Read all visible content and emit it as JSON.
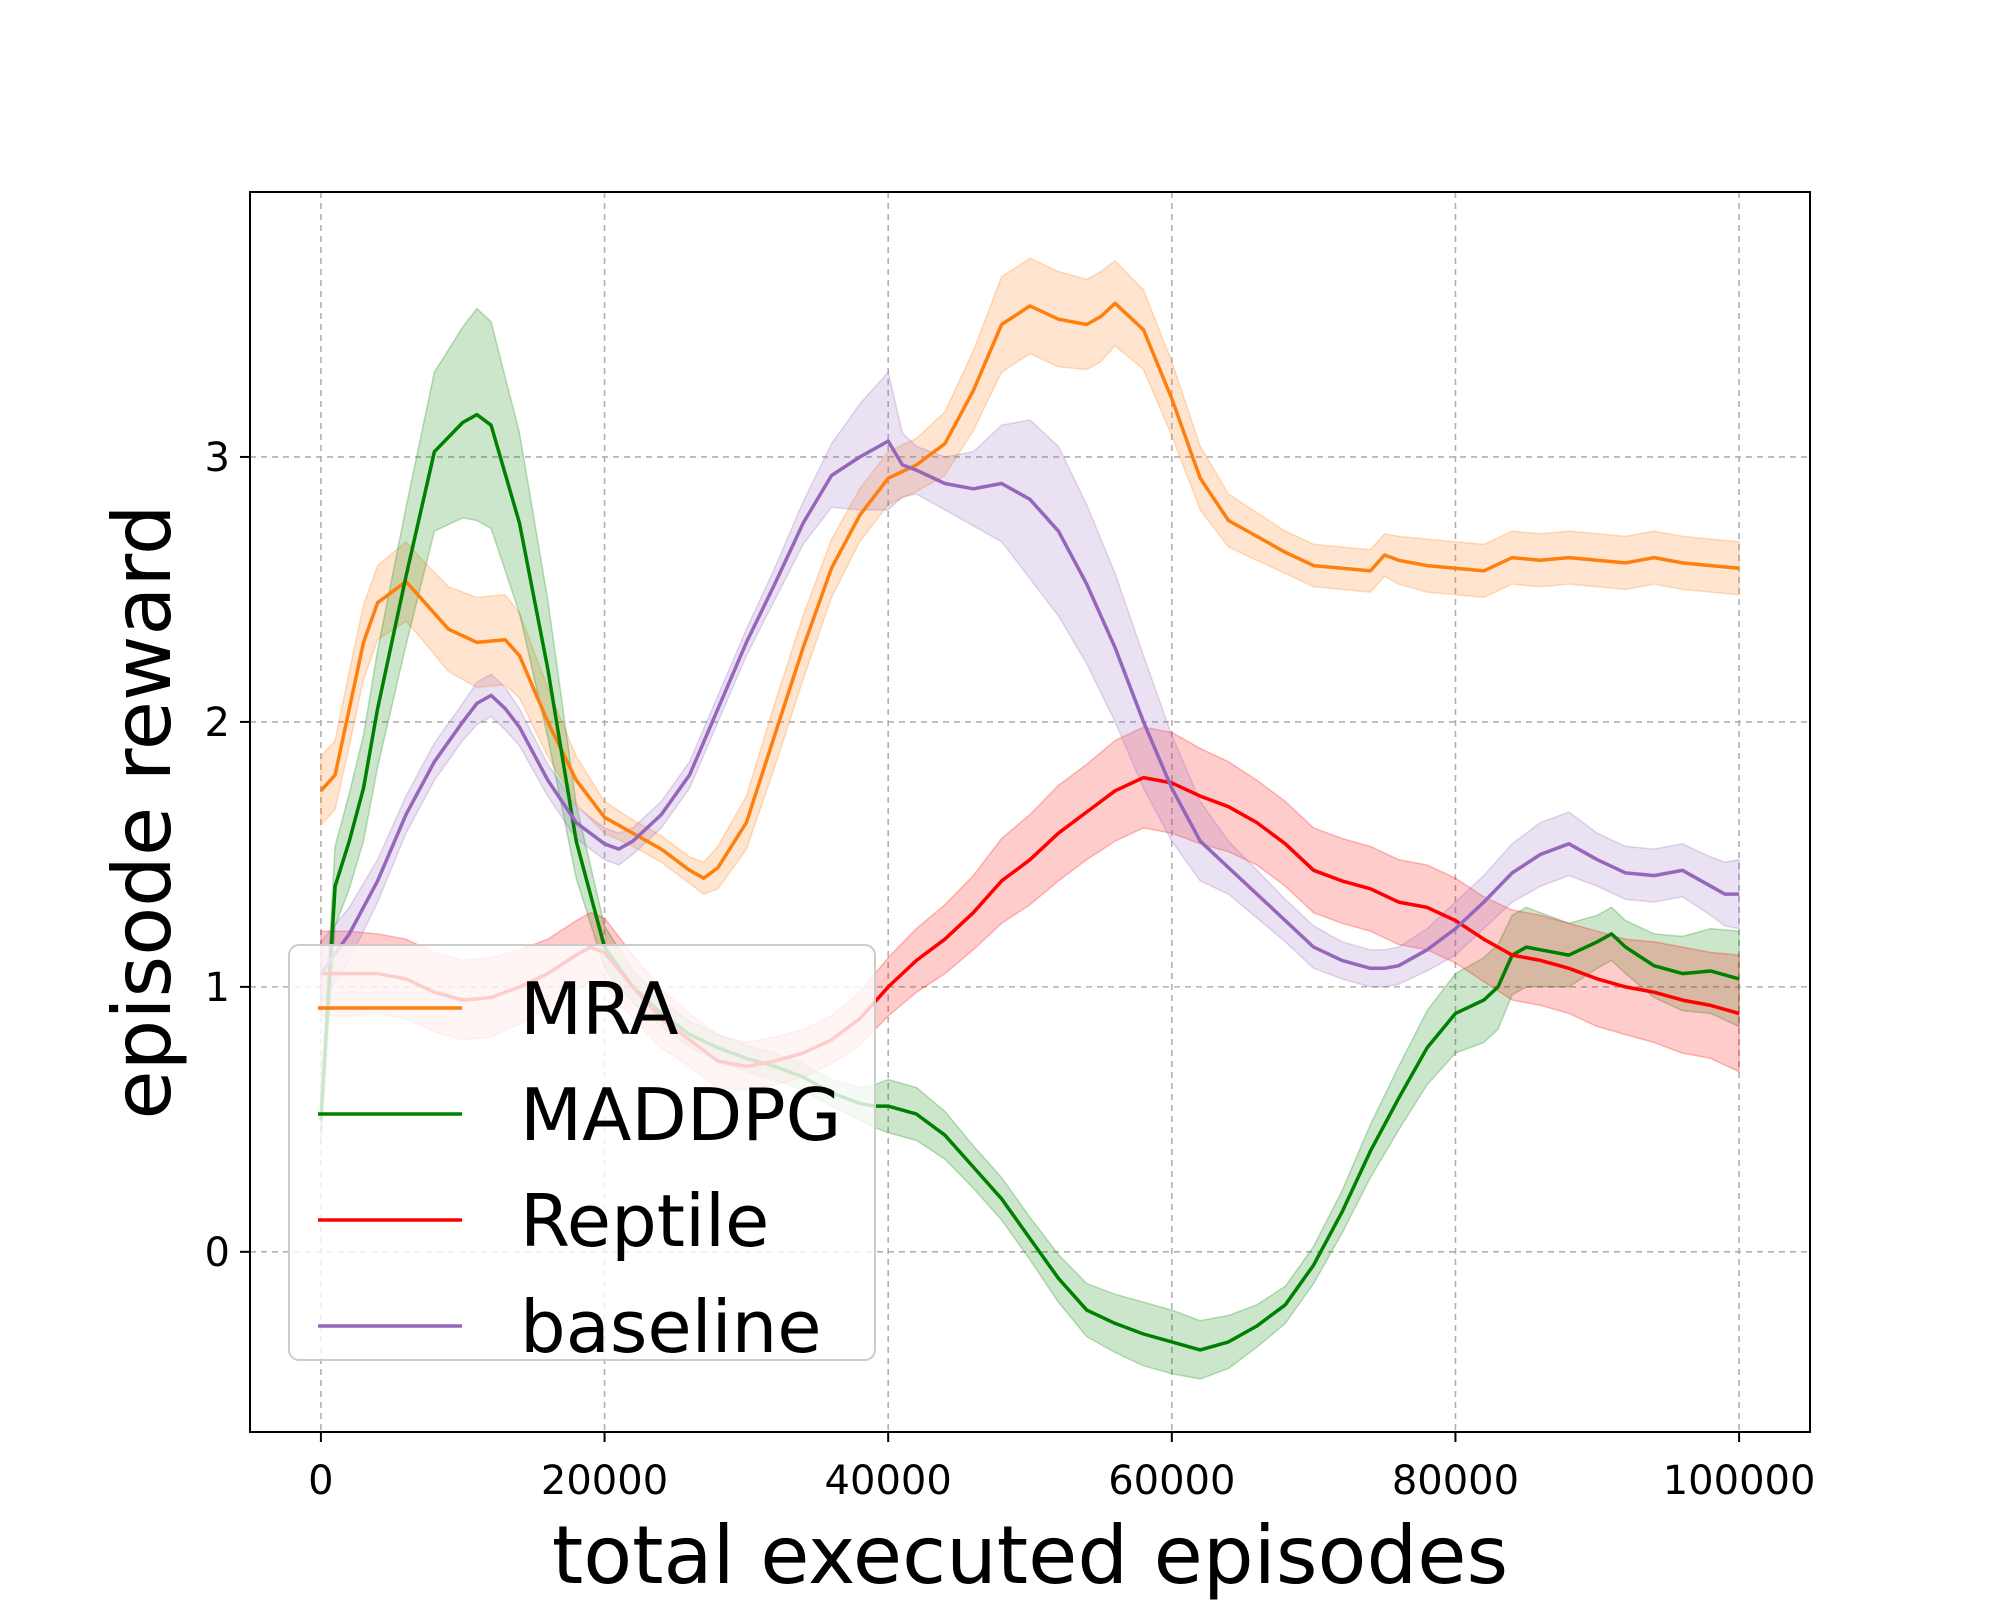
{
  "chart_data": {
    "type": "line",
    "title": "",
    "xlabel": "total executed episodes",
    "ylabel": "episode reward",
    "xlim": [
      -5000,
      105000
    ],
    "ylim": [
      -0.68,
      4.0
    ],
    "xticks": [
      0,
      20000,
      40000,
      60000,
      80000,
      100000
    ],
    "xtick_labels": [
      "0",
      "20000",
      "40000",
      "60000",
      "80000",
      "100000"
    ],
    "yticks": [
      0,
      1,
      2,
      3
    ],
    "ytick_labels": [
      "0",
      "1",
      "2",
      "3"
    ],
    "grid": true,
    "legend_position": "lower-left",
    "series": [
      {
        "name": "MRA",
        "color": "#ff7f0e",
        "x": [
          0,
          1000,
          2000,
          3000,
          4000,
          6000,
          7000,
          9000,
          11000,
          13000,
          14000,
          16000,
          18000,
          20000,
          22000,
          24000,
          26000,
          27000,
          28000,
          30000,
          32000,
          34000,
          36000,
          38000,
          40000,
          42000,
          44000,
          46000,
          48000,
          50000,
          52000,
          54000,
          55000,
          56000,
          58000,
          60000,
          62000,
          64000,
          66000,
          68000,
          70000,
          72000,
          74000,
          75000,
          76000,
          78000,
          80000,
          82000,
          84000,
          86000,
          88000,
          90000,
          92000,
          94000,
          96000,
          98000,
          100000
        ],
        "y": [
          1.74,
          1.8,
          2.05,
          2.3,
          2.45,
          2.53,
          2.47,
          2.35,
          2.3,
          2.31,
          2.25,
          2.0,
          1.78,
          1.64,
          1.58,
          1.52,
          1.44,
          1.41,
          1.45,
          1.62,
          1.95,
          2.28,
          2.58,
          2.78,
          2.92,
          2.97,
          3.05,
          3.25,
          3.5,
          3.57,
          3.52,
          3.5,
          3.53,
          3.58,
          3.48,
          3.22,
          2.92,
          2.76,
          2.7,
          2.64,
          2.59,
          2.58,
          2.57,
          2.63,
          2.61,
          2.59,
          2.58,
          2.57,
          2.62,
          2.61,
          2.62,
          2.61,
          2.6,
          2.62,
          2.6,
          2.59,
          2.58
        ],
        "band": [
          0.13,
          0.13,
          0.14,
          0.14,
          0.14,
          0.15,
          0.15,
          0.16,
          0.17,
          0.17,
          0.16,
          0.13,
          0.09,
          0.06,
          0.05,
          0.05,
          0.05,
          0.06,
          0.08,
          0.1,
          0.12,
          0.12,
          0.11,
          0.1,
          0.1,
          0.1,
          0.12,
          0.15,
          0.18,
          0.18,
          0.18,
          0.17,
          0.17,
          0.16,
          0.15,
          0.14,
          0.12,
          0.1,
          0.09,
          0.08,
          0.08,
          0.08,
          0.08,
          0.08,
          0.09,
          0.1,
          0.1,
          0.1,
          0.1,
          0.1,
          0.1,
          0.1,
          0.1,
          0.1,
          0.1,
          0.1,
          0.1
        ]
      },
      {
        "name": "MADDPG",
        "color": "#008000",
        "x": [
          0,
          1000,
          2000,
          3000,
          4000,
          6000,
          8000,
          10000,
          11000,
          12000,
          14000,
          16000,
          18000,
          20000,
          22000,
          24000,
          26000,
          28000,
          30000,
          32000,
          34000,
          36000,
          38000,
          39000,
          40000,
          42000,
          44000,
          46000,
          48000,
          50000,
          52000,
          54000,
          56000,
          58000,
          60000,
          62000,
          64000,
          66000,
          68000,
          70000,
          72000,
          74000,
          76000,
          78000,
          80000,
          82000,
          83000,
          84000,
          85000,
          86000,
          88000,
          90000,
          91000,
          92000,
          94000,
          96000,
          98000,
          100000
        ],
        "y": [
          0.5,
          1.38,
          1.55,
          1.75,
          2.05,
          2.55,
          3.02,
          3.13,
          3.16,
          3.12,
          2.75,
          2.2,
          1.55,
          1.15,
          1.0,
          0.9,
          0.82,
          0.77,
          0.73,
          0.7,
          0.66,
          0.6,
          0.56,
          0.55,
          0.55,
          0.52,
          0.44,
          0.32,
          0.2,
          0.05,
          -0.1,
          -0.22,
          -0.27,
          -0.31,
          -0.34,
          -0.37,
          -0.34,
          -0.28,
          -0.2,
          -0.05,
          0.15,
          0.38,
          0.58,
          0.77,
          0.9,
          0.95,
          1.0,
          1.12,
          1.15,
          1.14,
          1.12,
          1.17,
          1.2,
          1.15,
          1.08,
          1.05,
          1.06,
          1.03
        ],
        "band": [
          0.1,
          0.15,
          0.18,
          0.2,
          0.22,
          0.26,
          0.3,
          0.36,
          0.4,
          0.39,
          0.34,
          0.26,
          0.14,
          0.08,
          0.06,
          0.05,
          0.05,
          0.05,
          0.05,
          0.05,
          0.05,
          0.05,
          0.06,
          0.08,
          0.1,
          0.1,
          0.09,
          0.08,
          0.08,
          0.08,
          0.09,
          0.1,
          0.11,
          0.12,
          0.12,
          0.11,
          0.1,
          0.08,
          0.07,
          0.07,
          0.08,
          0.1,
          0.12,
          0.14,
          0.15,
          0.16,
          0.16,
          0.15,
          0.15,
          0.14,
          0.12,
          0.1,
          0.1,
          0.1,
          0.12,
          0.14,
          0.16,
          0.18
        ]
      },
      {
        "name": "Reptile",
        "color": "#ff0000",
        "x": [
          0,
          2000,
          4000,
          6000,
          8000,
          10000,
          12000,
          14000,
          16000,
          18000,
          19000,
          20000,
          22000,
          24000,
          26000,
          28000,
          30000,
          32000,
          34000,
          36000,
          38000,
          40000,
          42000,
          44000,
          46000,
          48000,
          50000,
          52000,
          54000,
          56000,
          58000,
          60000,
          62000,
          64000,
          66000,
          68000,
          70000,
          72000,
          74000,
          76000,
          78000,
          80000,
          82000,
          84000,
          86000,
          88000,
          90000,
          92000,
          94000,
          96000,
          98000,
          100000
        ],
        "y": [
          1.05,
          1.05,
          1.05,
          1.03,
          0.98,
          0.95,
          0.96,
          1.0,
          1.05,
          1.12,
          1.15,
          1.13,
          1.0,
          0.88,
          0.8,
          0.72,
          0.7,
          0.72,
          0.75,
          0.8,
          0.88,
          1.0,
          1.1,
          1.18,
          1.28,
          1.4,
          1.48,
          1.58,
          1.66,
          1.74,
          1.79,
          1.77,
          1.72,
          1.68,
          1.62,
          1.54,
          1.44,
          1.4,
          1.37,
          1.32,
          1.3,
          1.25,
          1.18,
          1.12,
          1.1,
          1.07,
          1.03,
          1.0,
          0.98,
          0.95,
          0.93,
          0.9
        ],
        "band": [
          0.16,
          0.16,
          0.15,
          0.15,
          0.15,
          0.15,
          0.15,
          0.14,
          0.13,
          0.13,
          0.13,
          0.13,
          0.12,
          0.11,
          0.1,
          0.1,
          0.09,
          0.09,
          0.09,
          0.09,
          0.1,
          0.11,
          0.12,
          0.13,
          0.14,
          0.16,
          0.17,
          0.18,
          0.18,
          0.19,
          0.19,
          0.19,
          0.18,
          0.17,
          0.16,
          0.16,
          0.16,
          0.16,
          0.16,
          0.16,
          0.16,
          0.16,
          0.16,
          0.17,
          0.17,
          0.17,
          0.18,
          0.18,
          0.19,
          0.2,
          0.2,
          0.22
        ]
      },
      {
        "name": "baseline",
        "color": "#9467bd",
        "x": [
          0,
          2000,
          4000,
          6000,
          8000,
          10000,
          11000,
          12000,
          13000,
          14000,
          16000,
          18000,
          20000,
          21000,
          22000,
          24000,
          26000,
          28000,
          30000,
          32000,
          34000,
          36000,
          38000,
          40000,
          41000,
          42000,
          44000,
          46000,
          48000,
          50000,
          52000,
          54000,
          56000,
          58000,
          60000,
          62000,
          64000,
          66000,
          68000,
          70000,
          72000,
          74000,
          75000,
          76000,
          78000,
          80000,
          82000,
          84000,
          86000,
          88000,
          90000,
          92000,
          94000,
          96000,
          98000,
          99000,
          100000
        ],
        "y": [
          1.05,
          1.2,
          1.4,
          1.65,
          1.85,
          2.0,
          2.07,
          2.1,
          2.05,
          1.98,
          1.78,
          1.62,
          1.54,
          1.52,
          1.55,
          1.65,
          1.8,
          2.05,
          2.3,
          2.52,
          2.75,
          2.93,
          3.0,
          3.06,
          2.97,
          2.95,
          2.9,
          2.88,
          2.9,
          2.84,
          2.72,
          2.52,
          2.28,
          2.0,
          1.75,
          1.55,
          1.45,
          1.35,
          1.25,
          1.15,
          1.1,
          1.07,
          1.07,
          1.08,
          1.14,
          1.22,
          1.32,
          1.43,
          1.5,
          1.54,
          1.48,
          1.43,
          1.42,
          1.44,
          1.38,
          1.35,
          1.35
        ],
        "band": [
          0.12,
          0.1,
          0.08,
          0.07,
          0.07,
          0.07,
          0.08,
          0.08,
          0.08,
          0.07,
          0.06,
          0.06,
          0.06,
          0.06,
          0.05,
          0.05,
          0.05,
          0.05,
          0.05,
          0.06,
          0.08,
          0.12,
          0.2,
          0.26,
          0.12,
          0.09,
          0.1,
          0.14,
          0.22,
          0.3,
          0.32,
          0.3,
          0.28,
          0.25,
          0.2,
          0.15,
          0.1,
          0.09,
          0.08,
          0.08,
          0.07,
          0.07,
          0.07,
          0.07,
          0.08,
          0.1,
          0.1,
          0.11,
          0.12,
          0.12,
          0.1,
          0.1,
          0.1,
          0.1,
          0.11,
          0.12,
          0.13
        ]
      }
    ]
  }
}
